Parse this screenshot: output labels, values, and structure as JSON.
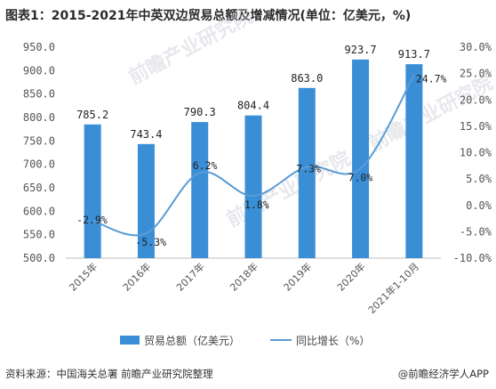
{
  "title": "图表1：2015-2021年中英双边贸易总额及增减情况(单位：亿美元，%)",
  "source": "资料来源：中国海关总署 前瞻产业研究院整理",
  "credit": "@前瞻经济学人APP",
  "watermark": "前瞻产业研究院",
  "colors": {
    "bar": "#3a8ed6",
    "line": "#5a9bd5"
  },
  "chart_data": {
    "type": "bar",
    "categories": [
      "2015年",
      "2016年",
      "2017年",
      "2018年",
      "2019年",
      "2020年",
      "2021年1-10月"
    ],
    "series": [
      {
        "name": "贸易总额（亿美元）",
        "type": "bar",
        "axis": "left",
        "values": [
          785.2,
          743.4,
          790.3,
          804.4,
          863.0,
          923.7,
          913.7
        ],
        "labels": [
          "785.2",
          "743.4",
          "790.3",
          "804.4",
          "863.0",
          "923.7",
          "913.7"
        ]
      },
      {
        "name": "同比增长（%）",
        "type": "line",
        "axis": "right",
        "values": [
          -2.9,
          -5.3,
          6.2,
          1.8,
          7.3,
          7.0,
          24.7
        ],
        "labels": [
          "-2.9%",
          "-5.3%",
          "6.2%",
          "1.8%",
          "7.3%",
          "7.0%",
          "24.7%"
        ]
      }
    ],
    "y_left": {
      "min": 500,
      "max": 950,
      "step": 50,
      "ticks": [
        "500.0",
        "550.0",
        "600.0",
        "650.0",
        "700.0",
        "750.0",
        "800.0",
        "850.0",
        "900.0",
        "950.0"
      ]
    },
    "y_right": {
      "min": -10,
      "max": 30,
      "step": 5,
      "ticks": [
        "-10.0%",
        "-5.0%",
        "0.0%",
        "5.0%",
        "10.0%",
        "15.0%",
        "20.0%",
        "25.0%",
        "30.0%"
      ]
    },
    "grid": false,
    "legend": "bottom"
  }
}
